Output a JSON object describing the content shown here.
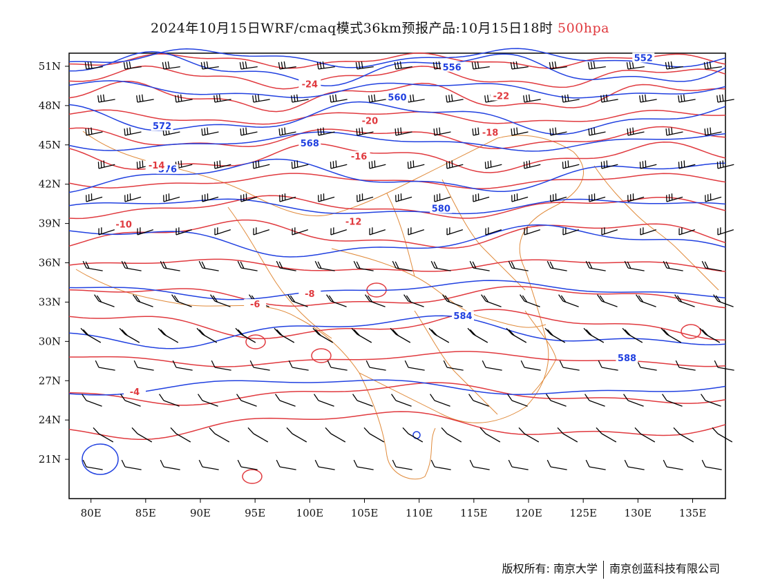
{
  "title": {
    "main": "2024年10月15日WRF/cmaq模式36km预报产品:10月15日18时",
    "level": "500hpa"
  },
  "axes": {
    "lat_labels": [
      "51N",
      "48N",
      "45N",
      "42N",
      "39N",
      "36N",
      "33N",
      "30N",
      "27N",
      "24N",
      "21N"
    ],
    "lon_labels": [
      "80E",
      "85E",
      "90E",
      "95E",
      "100E",
      "105E",
      "110E",
      "115E",
      "120E",
      "125E",
      "130E",
      "135E"
    ],
    "lon_range": [
      78,
      138
    ],
    "lat_range": [
      18,
      52
    ]
  },
  "colors": {
    "height_contour": "#2040e0",
    "temp_contour": "#e0393e",
    "border": "#e08a3a",
    "wind": "#000000"
  },
  "height_contours": [
    {
      "value": "552",
      "label_lon": 130.5,
      "label_lat": 51.5
    },
    {
      "value": "556",
      "label_lon": 113.0,
      "label_lat": 50.8
    },
    {
      "value": "560",
      "label_lon": 108.0,
      "label_lat": 48.5
    },
    {
      "value": "568",
      "label_lon": 100.0,
      "label_lat": 45.0
    },
    {
      "value": "572",
      "label_lon": 86.5,
      "label_lat": 46.3
    },
    {
      "value": "576",
      "label_lon": 87.0,
      "label_lat": 43.0
    },
    {
      "value": "580",
      "label_lon": 112.0,
      "label_lat": 40.0
    },
    {
      "value": "584",
      "label_lon": 114.0,
      "label_lat": 31.8
    },
    {
      "value": "588",
      "label_lon": 129.0,
      "label_lat": 28.6
    }
  ],
  "temp_contours": [
    {
      "value": "-24",
      "label_lon": 100.0,
      "label_lat": 49.5
    },
    {
      "value": "-22",
      "label_lon": 117.5,
      "label_lat": 48.6
    },
    {
      "value": "-20",
      "label_lon": 105.5,
      "label_lat": 46.7
    },
    {
      "value": "-18",
      "label_lon": 116.5,
      "label_lat": 45.8
    },
    {
      "value": "-16",
      "label_lon": 104.5,
      "label_lat": 44.0
    },
    {
      "value": "-14",
      "label_lon": 86.0,
      "label_lat": 43.3
    },
    {
      "value": "-12",
      "label_lon": 104.0,
      "label_lat": 39.0
    },
    {
      "value": "-10",
      "label_lon": 83.0,
      "label_lat": 38.8
    },
    {
      "value": "-8",
      "label_lon": 100.0,
      "label_lat": 33.5
    },
    {
      "value": "-6",
      "label_lon": 95.0,
      "label_lat": 32.7
    },
    {
      "value": "-4",
      "label_lon": 84.0,
      "label_lat": 26.0
    }
  ],
  "footer": {
    "copyright": "版权所有: 南京大学",
    "company": "南京创蓝科技有限公司"
  }
}
